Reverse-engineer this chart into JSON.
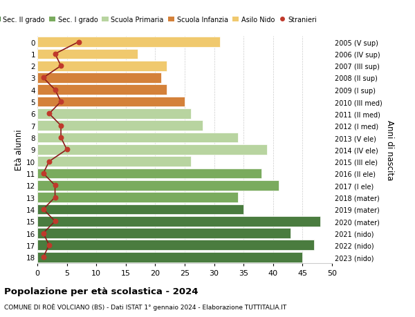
{
  "ages": [
    18,
    17,
    16,
    15,
    14,
    13,
    12,
    11,
    10,
    9,
    8,
    7,
    6,
    5,
    4,
    3,
    2,
    1,
    0
  ],
  "years": [
    "2005 (V sup)",
    "2006 (IV sup)",
    "2007 (III sup)",
    "2008 (II sup)",
    "2009 (I sup)",
    "2010 (III med)",
    "2011 (II med)",
    "2012 (I med)",
    "2013 (V ele)",
    "2014 (IV ele)",
    "2015 (III ele)",
    "2016 (II ele)",
    "2017 (I ele)",
    "2018 (mater)",
    "2019 (mater)",
    "2020 (mater)",
    "2021 (nido)",
    "2022 (nido)",
    "2023 (nido)"
  ],
  "bar_values": [
    45,
    47,
    43,
    48,
    35,
    34,
    41,
    38,
    26,
    39,
    34,
    28,
    26,
    25,
    22,
    21,
    22,
    17,
    31
  ],
  "bar_colors": [
    "#4a7c3f",
    "#4a7c3f",
    "#4a7c3f",
    "#4a7c3f",
    "#4a7c3f",
    "#7aab5e",
    "#7aab5e",
    "#7aab5e",
    "#b8d4a0",
    "#b8d4a0",
    "#b8d4a0",
    "#b8d4a0",
    "#b8d4a0",
    "#d4813a",
    "#d4813a",
    "#d4813a",
    "#f0c96e",
    "#f0c96e",
    "#f0c96e"
  ],
  "stranieri_values": [
    1,
    2,
    1,
    3,
    1,
    3,
    3,
    1,
    2,
    5,
    4,
    4,
    2,
    4,
    3,
    1,
    4,
    3,
    7
  ],
  "legend_labels": [
    "Sec. II grado",
    "Sec. I grado",
    "Scuola Primaria",
    "Scuola Infanzia",
    "Asilo Nido",
    "Stranieri"
  ],
  "legend_colors": [
    "#4a7c3f",
    "#7aab5e",
    "#b8d4a0",
    "#d4813a",
    "#f0c96e",
    "#c0392b"
  ],
  "title_bold": "Popolazione per età scolastica - 2024",
  "subtitle": "COMUNE DI ROÈ VOLCIANO (BS) - Dati ISTAT 1° gennaio 2024 - Elaborazione TUTTITALIA.IT",
  "ylabel": "Età alunni",
  "right_ylabel": "Anni di nascita",
  "xlim": [
    0,
    50
  ],
  "xticks": [
    0,
    5,
    10,
    15,
    20,
    25,
    30,
    35,
    40,
    45,
    50
  ],
  "background_color": "#ffffff",
  "stranieri_color": "#c0392b",
  "stranieri_line_color": "#8b1a1a",
  "grid_color": "#cccccc"
}
